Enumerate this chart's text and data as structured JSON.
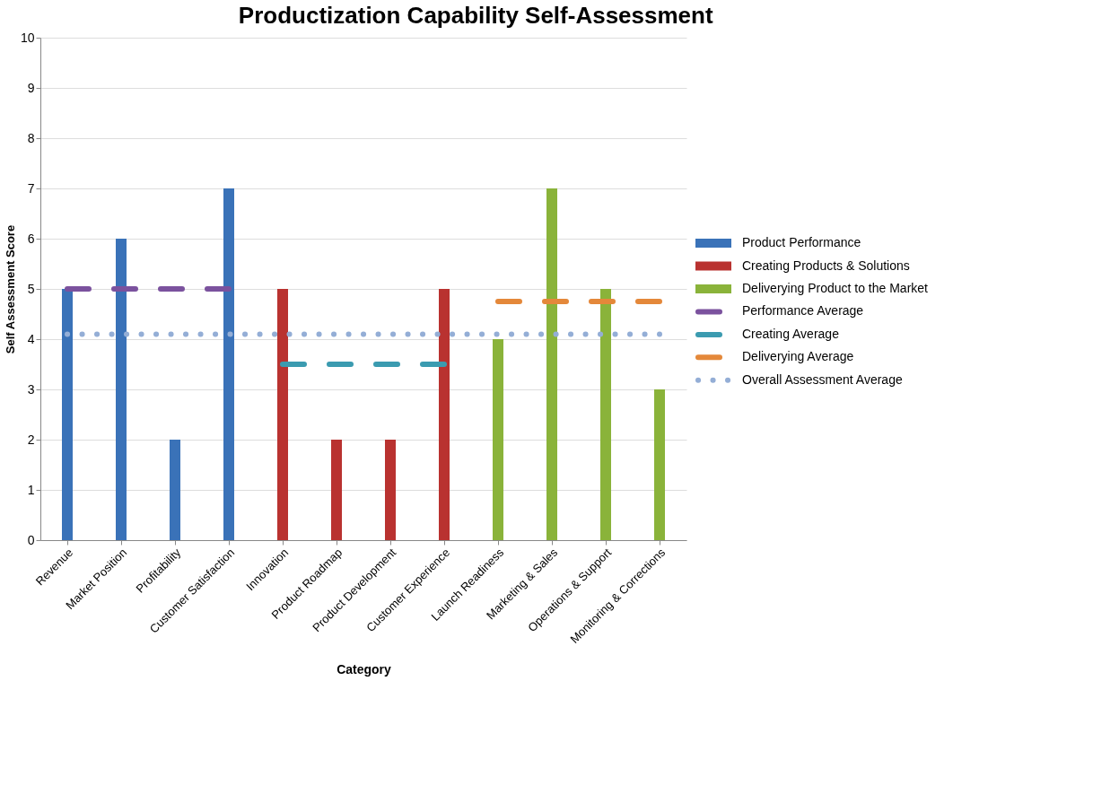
{
  "chart_data": {
    "type": "bar",
    "title": "Productization Capability Self-Assessment",
    "xlabel": "Category",
    "ylabel": "Self Assessment Score",
    "categories": [
      "Revenue",
      "Market Position",
      "Profitability",
      "Customer Satisfaction",
      "Innovation",
      "Product Roadmap",
      "Product Development",
      "Customer Experience",
      "Launch Readiness",
      "Marketing & Sales",
      "Operations & Support",
      "Monitoring & Corrections"
    ],
    "series": [
      {
        "name": "Product Performance",
        "color": "#3a72b8",
        "values": [
          5,
          6,
          2,
          7,
          null,
          null,
          null,
          null,
          null,
          null,
          null,
          null
        ]
      },
      {
        "name": "Creating Products & Solutions",
        "color": "#b93230",
        "values": [
          null,
          null,
          null,
          null,
          5,
          2,
          2,
          5,
          null,
          null,
          null,
          null
        ]
      },
      {
        "name": "Deliverying Product to the Market",
        "color": "#8ab33a",
        "values": [
          null,
          null,
          null,
          null,
          null,
          null,
          null,
          null,
          4,
          7,
          5,
          3
        ]
      },
      {
        "name": "Performance Average",
        "type": "line",
        "line_style": "dashed",
        "color": "#7b529e",
        "values": [
          5,
          5,
          5,
          5,
          null,
          null,
          null,
          null,
          null,
          null,
          null,
          null
        ]
      },
      {
        "name": "Creating Average",
        "type": "line",
        "line_style": "dashed",
        "color": "#3b9bb0",
        "values": [
          null,
          null,
          null,
          null,
          3.5,
          3.5,
          3.5,
          3.5,
          null,
          null,
          null,
          null
        ]
      },
      {
        "name": "Deliverying Average",
        "type": "line",
        "line_style": "dashed",
        "color": "#e4883a",
        "values": [
          null,
          null,
          null,
          null,
          null,
          null,
          null,
          null,
          4.75,
          4.75,
          4.75,
          4.75
        ]
      },
      {
        "name": "Overall Assessment Average",
        "type": "line",
        "line_style": "dotted",
        "color": "#94aed6",
        "values": [
          4.1,
          4.1,
          4.1,
          4.1,
          4.1,
          4.1,
          4.1,
          4.1,
          4.1,
          4.1,
          4.1,
          4.1
        ]
      }
    ],
    "ylim": [
      0,
      10
    ],
    "yticks": [
      0,
      1,
      2,
      3,
      4,
      5,
      6,
      7,
      8,
      9,
      10
    ],
    "grid": "y",
    "legend": "right",
    "marker": "none"
  }
}
